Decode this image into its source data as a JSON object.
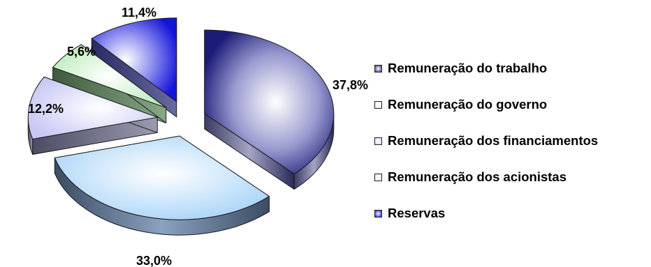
{
  "chart_data": {
    "type": "pie",
    "title": "",
    "labels": [
      "Remuneração do trabalho",
      "Remuneração do governo",
      "Remuneração dos financiamentos",
      "Remuneração dos acionistas",
      "Reservas"
    ],
    "values": [
      37.8,
      33.0,
      12.2,
      5.6,
      11.4
    ],
    "value_labels": [
      "37,8%",
      "33,0%",
      "12,2%",
      "5,6%",
      "11,4%"
    ],
    "colors": [
      "#2a2a80",
      "#a8d4f8",
      "#d4d4fa",
      "#c8f0c8",
      "#2020e0"
    ],
    "exploded": true,
    "three_d": true,
    "legend_position": "right"
  }
}
